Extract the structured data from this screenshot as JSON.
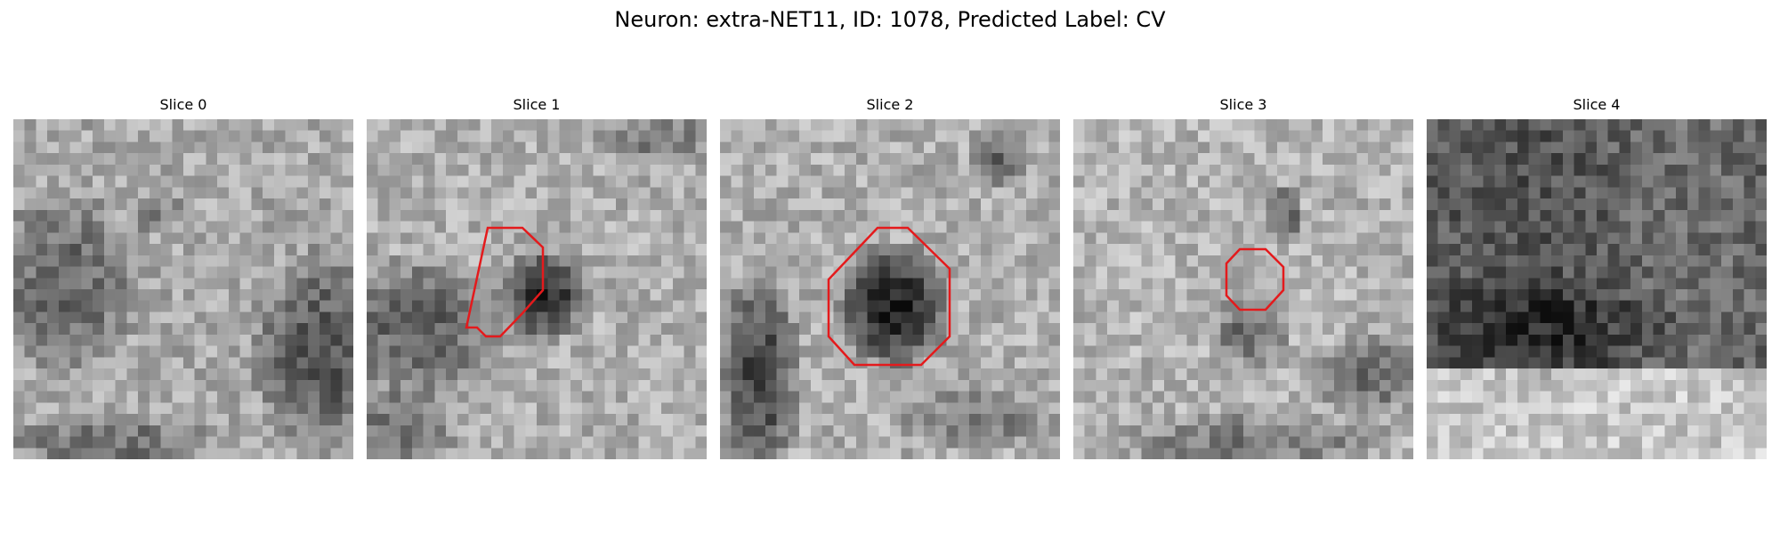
{
  "title": "Neuron: extra-NET11, ID: 1078, Predicted Label: CV",
  "slices": [
    {
      "label": "Slice 0",
      "roi_color": "#e41a1c"
    },
    {
      "label": "Slice 1",
      "roi_color": "#e41a1c"
    },
    {
      "label": "Slice 2",
      "roi_color": "#e41a1c"
    },
    {
      "label": "Slice 3",
      "roi_color": "#e41a1c"
    },
    {
      "label": "Slice 4",
      "roi_color": "#e41a1c"
    }
  ]
}
